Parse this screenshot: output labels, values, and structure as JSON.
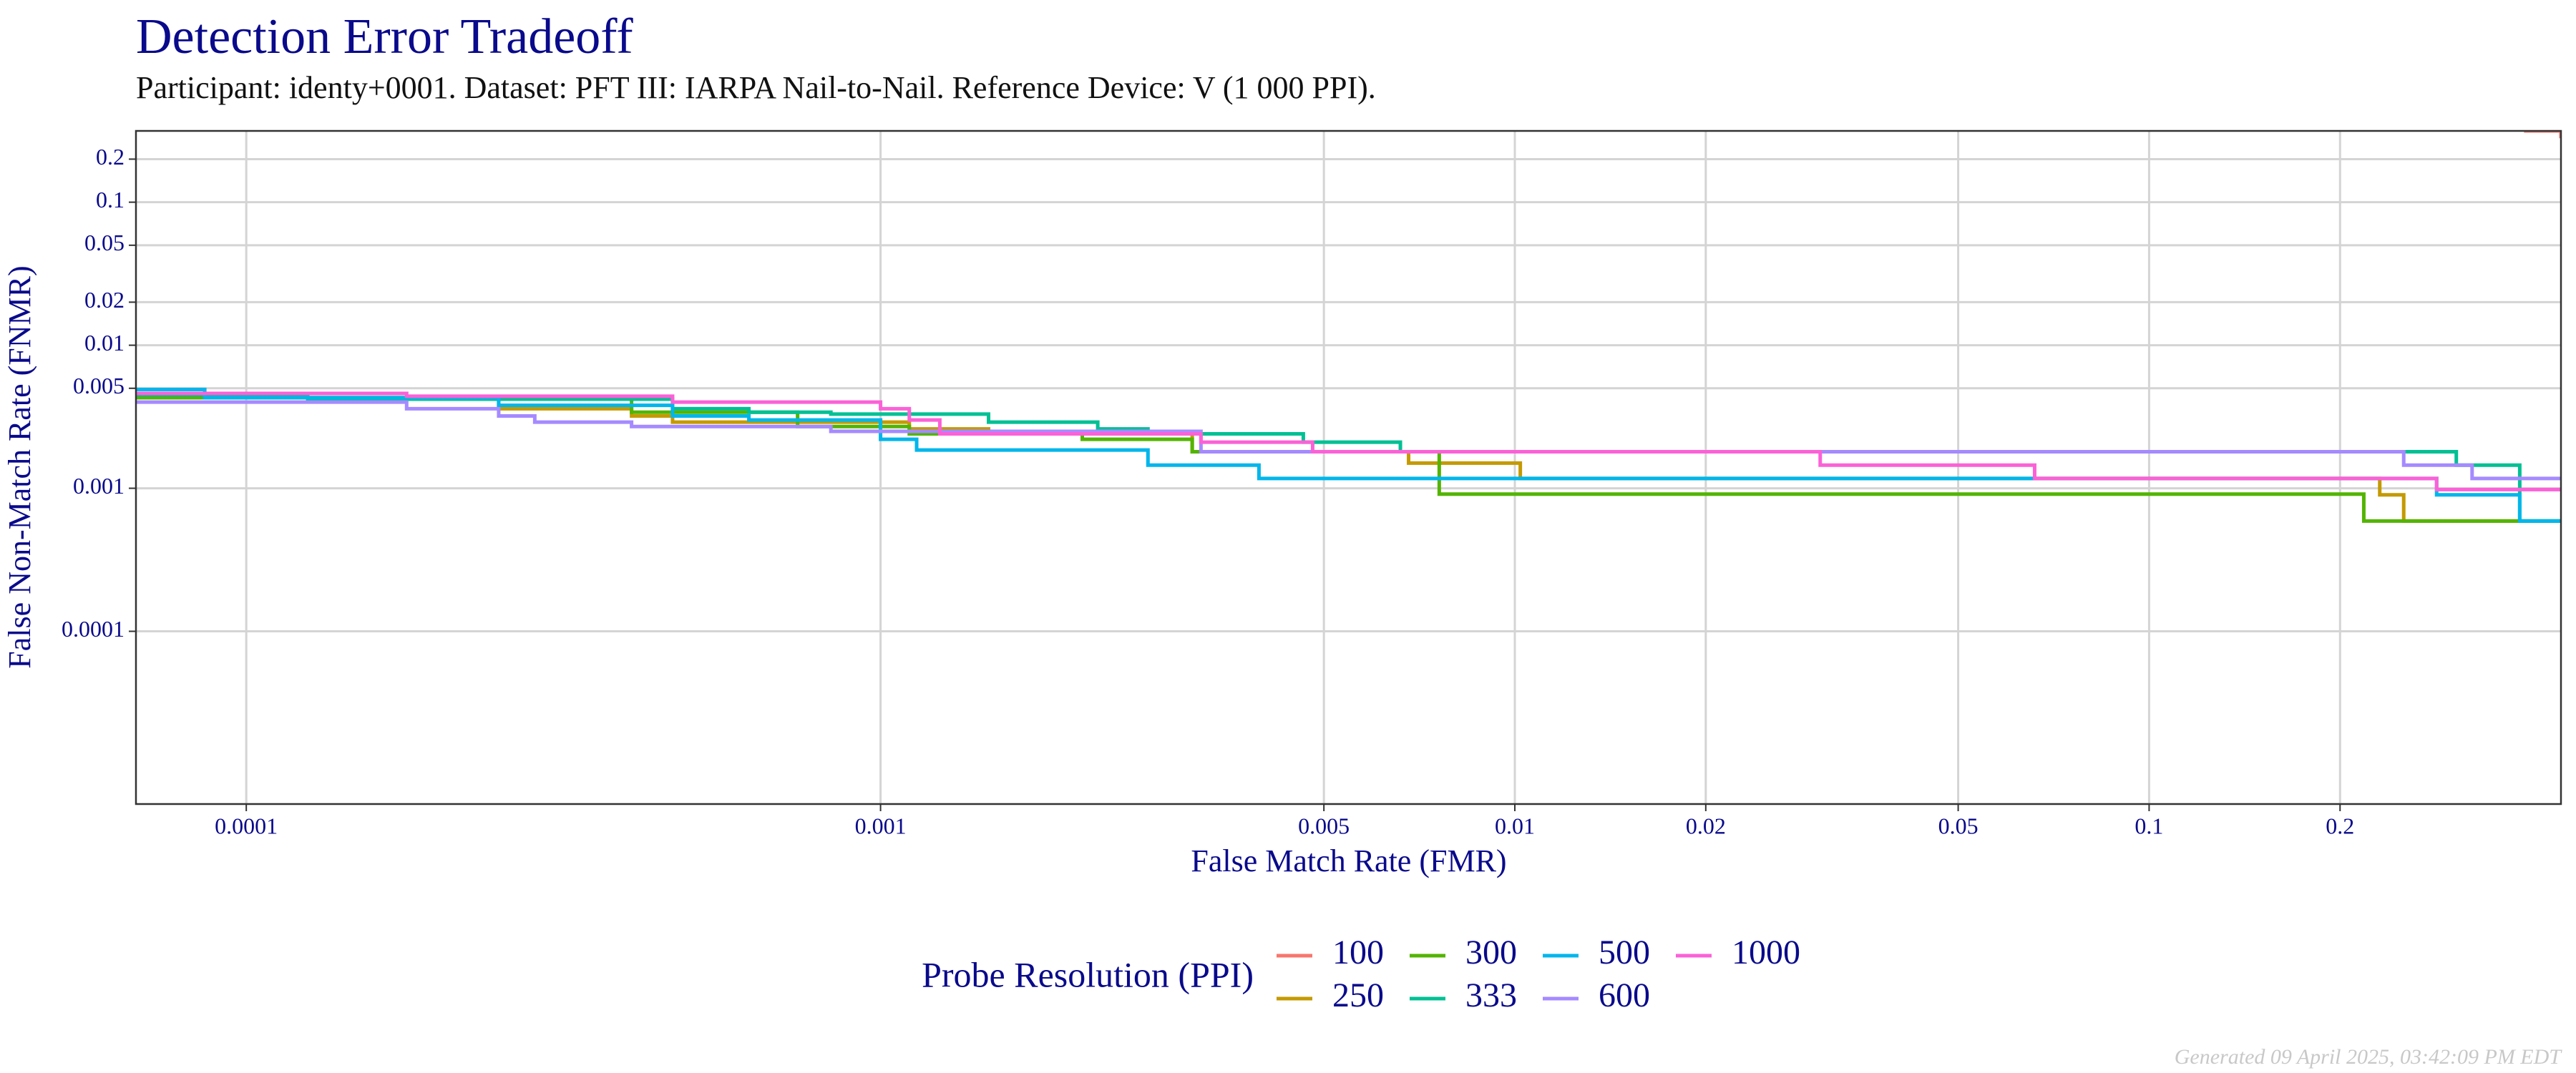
{
  "chart_data": {
    "type": "step",
    "title": "Detection Error Tradeoff",
    "subtitle": "Participant: identy+0001. Dataset: PFT III: IARPA Nail-to-Nail. Reference Device: V (1 000 PPI).",
    "x_label": "False Match Rate (FMR)",
    "y_label": "False Non-Match Rate (FNMR)",
    "x_scale": "log",
    "y_scale": "log",
    "xlim": [
      6.7e-05,
      0.446
    ],
    "ylim": [
      6.2e-06,
      0.315
    ],
    "xticks": [
      0.0001,
      0.001,
      0.005,
      0.01,
      0.02,
      0.05,
      0.1,
      0.2
    ],
    "yticks": [
      0.0001,
      0.001,
      0.005,
      0.01,
      0.02,
      0.05,
      0.1,
      0.2
    ],
    "grid": true,
    "legend_title": "Probe Resolution (PPI)",
    "legend_position": "bottom",
    "footer": "Generated 09 April 2025, 03:42:09 PM EDT",
    "series": [
      {
        "name": "100",
        "color": "#F8766D",
        "x": [
          0.39,
          0.446
        ],
        "values": [
          0.315,
          0.28
        ]
      },
      {
        "name": "250",
        "color": "#C49A00",
        "x": [
          6.7e-05,
          0.00025,
          0.000405,
          0.00047,
          0.00111,
          0.00148,
          0.0031,
          0.0068,
          0.0102,
          0.231,
          0.252
        ],
        "values": [
          0.0043,
          0.0036,
          0.0032,
          0.0029,
          0.0026,
          0.0024,
          0.0018,
          0.0015,
          0.00117,
          0.0009,
          0.00059
        ]
      },
      {
        "name": "300",
        "color": "#53B400",
        "x": [
          6.7e-05,
          0.000405,
          0.00074,
          0.00111,
          0.00208,
          0.0031,
          0.0076,
          0.218
        ],
        "values": [
          0.0043,
          0.0034,
          0.0027,
          0.0024,
          0.0022,
          0.0018,
          0.00091,
          0.00059
        ]
      },
      {
        "name": "333",
        "color": "#00C094",
        "x": [
          6.7e-05,
          0.000125,
          0.00047,
          0.00062,
          0.000835,
          0.00148,
          0.0022,
          0.00264,
          0.00464,
          0.0066,
          0.305,
          0.384
        ],
        "values": [
          0.0045,
          0.0042,
          0.0036,
          0.0034,
          0.0033,
          0.0029,
          0.0026,
          0.0024,
          0.0021,
          0.0018,
          0.00145,
          0.00059
        ]
      },
      {
        "name": "500",
        "color": "#00B6EB",
        "x": [
          6.7e-05,
          8.6e-05,
          0.00025,
          0.00047,
          0.00062,
          0.001,
          0.00114,
          0.00264,
          0.00395,
          0.284,
          0.384
        ],
        "values": [
          0.0049,
          0.0043,
          0.0038,
          0.0032,
          0.003,
          0.0022,
          0.00185,
          0.00145,
          0.00117,
          0.0009,
          0.00059
        ]
      },
      {
        "name": "600",
        "color": "#A58AFF",
        "x": [
          6.7e-05,
          0.000179,
          0.00025,
          0.000285,
          0.000405,
          0.000835,
          0.0032,
          0.252,
          0.323
        ],
        "values": [
          0.004,
          0.0036,
          0.0032,
          0.0029,
          0.0027,
          0.0025,
          0.0018,
          0.00145,
          0.00117
        ]
      },
      {
        "name": "1000",
        "color": "#FB61D7",
        "x": [
          6.7e-05,
          0.000179,
          0.00047,
          0.001,
          0.00111,
          0.00124,
          0.0032,
          0.0048,
          0.0303,
          0.066,
          0.284
        ],
        "values": [
          0.0046,
          0.0044,
          0.004,
          0.0036,
          0.003,
          0.0024,
          0.0021,
          0.0018,
          0.00145,
          0.00117,
          0.00098
        ]
      }
    ]
  }
}
